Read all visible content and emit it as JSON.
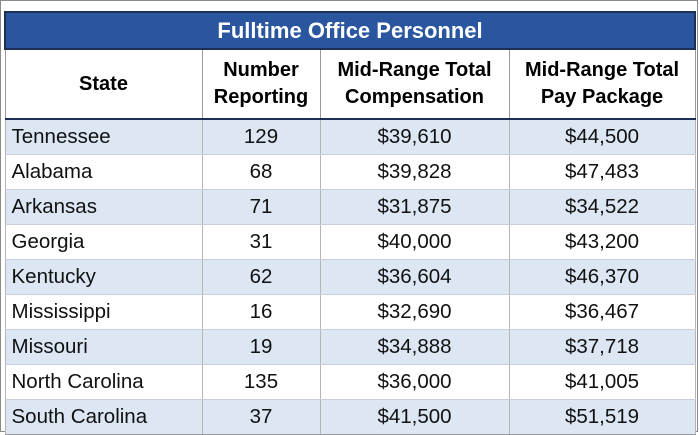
{
  "table": {
    "title": "Fulltime Office Personnel",
    "headers": [
      [
        "State"
      ],
      [
        "Number",
        "Reporting"
      ],
      [
        "Mid-Range Total",
        "Compensation"
      ],
      [
        "Mid-Range Total",
        "Pay Package"
      ]
    ],
    "rows": [
      [
        "Tennessee",
        "129",
        "$39,610",
        "$44,500"
      ],
      [
        "Alabama",
        "68",
        "$39,828",
        "$47,483"
      ],
      [
        "Arkansas",
        "71",
        "$31,875",
        "$34,522"
      ],
      [
        "Georgia",
        "31",
        "$40,000",
        "$43,200"
      ],
      [
        "Kentucky",
        "62",
        "$36,604",
        "$46,370"
      ],
      [
        "Mississippi",
        "16",
        "$32,690",
        "$36,467"
      ],
      [
        "Missouri",
        "19",
        "$34,888",
        "$37,718"
      ],
      [
        "North Carolina",
        "135",
        "$36,000",
        "$41,005"
      ],
      [
        "South Carolina",
        "37",
        "$41,500",
        "$51,519"
      ]
    ],
    "colors": {
      "title_bg": "#2a56a0",
      "title_text": "#ffffff",
      "band_row": "#dde7f4",
      "plain_row": "#ffffff"
    }
  }
}
